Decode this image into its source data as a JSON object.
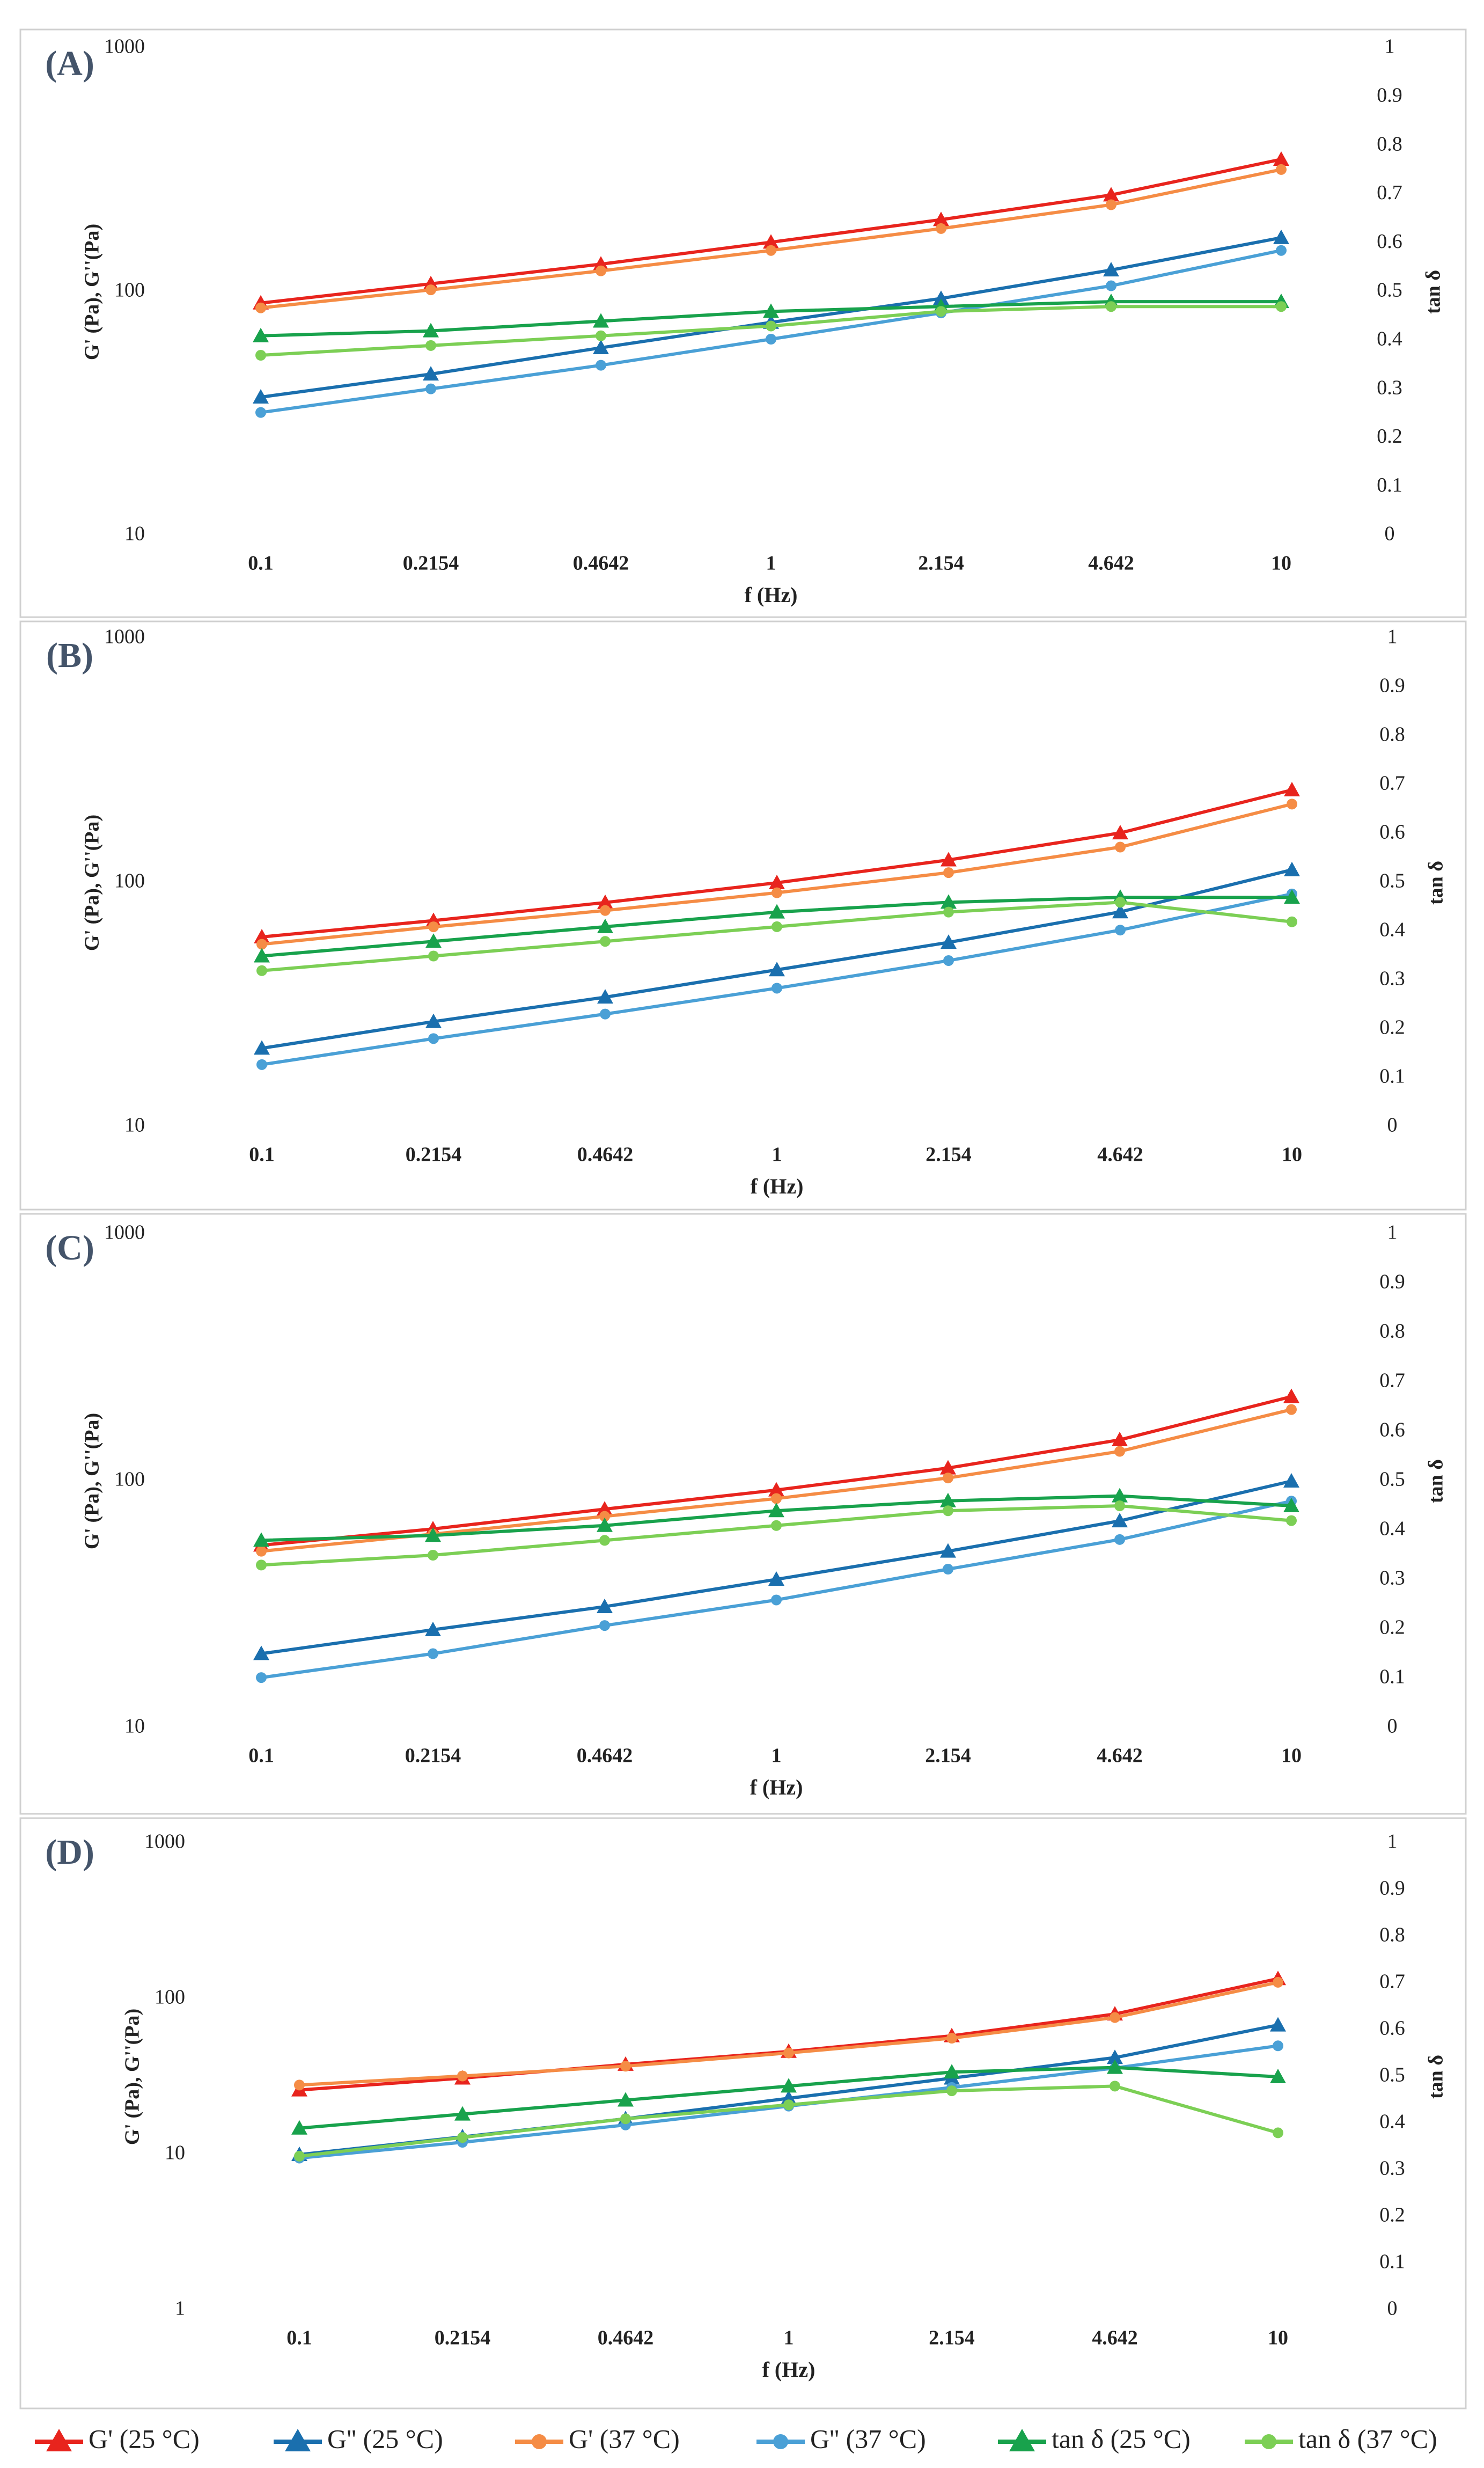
{
  "legend": [
    {
      "label": "G' (25 °C)",
      "color": "#e8241d",
      "marker": "triangle"
    },
    {
      "label": "G'' (25 °C)",
      "color": "#1a6fae",
      "marker": "triangle"
    },
    {
      "label": "G' (37 °C)",
      "color": "#f58c45",
      "marker": "circle"
    },
    {
      "label": "G'' (37 °C)",
      "color": "#4aa0d6",
      "marker": "circle"
    },
    {
      "label": "tan δ (25 °C)",
      "color": "#18a24c",
      "marker": "triangle"
    },
    {
      "label": "tan δ (37 °C)",
      "color": "#7ccf55",
      "marker": "circle"
    }
  ],
  "chart_data": [
    {
      "type": "line",
      "panel_label": "(A)",
      "categories": [
        "0.1",
        "0.2154",
        "0.4642",
        "1",
        "2.154",
        "4.642",
        "10"
      ],
      "xlabel": "f (Hz)",
      "ylabel": "G' (Pa), G''(Pa)",
      "y2label": "tan δ",
      "yscale": "log",
      "ylim": [
        10,
        1000
      ],
      "yticks": [
        "1000",
        "100",
        "10"
      ],
      "y2lim": [
        0,
        1
      ],
      "y2ticks": [
        "1",
        "0.9",
        "0.8",
        "0.7",
        "0.6",
        "0.5",
        "0.4",
        "0.3",
        "0.2",
        "0.1",
        "0"
      ],
      "series": [
        {
          "name": "G' (25 °C)",
          "axis": "left",
          "values": [
            90,
            108,
            130,
            160,
            198,
            250,
            350
          ]
        },
        {
          "name": "G'' (25 °C)",
          "axis": "left",
          "values": [
            37,
            46,
            59,
            75,
            94,
            123,
            167
          ]
        },
        {
          "name": "G' (37 °C)",
          "axis": "left",
          "values": [
            86,
            102,
            122,
            148,
            182,
            228,
            318
          ]
        },
        {
          "name": "G'' (37 °C)",
          "axis": "left",
          "values": [
            32,
            40,
            50,
            64,
            82,
            106,
            148
          ]
        },
        {
          "name": "tan δ (25 °C)",
          "axis": "right",
          "values": [
            0.41,
            0.42,
            0.44,
            0.46,
            0.47,
            0.48,
            0.48
          ]
        },
        {
          "name": "tan δ (37 °C)",
          "axis": "right",
          "values": [
            0.37,
            0.39,
            0.41,
            0.43,
            0.46,
            0.47,
            0.47
          ]
        }
      ]
    },
    {
      "type": "line",
      "panel_label": "(B)",
      "categories": [
        "0.1",
        "0.2154",
        "0.4642",
        "1",
        "2.154",
        "4.642",
        "10"
      ],
      "xlabel": "f (Hz)",
      "ylabel": "G' (Pa), G''(Pa)",
      "y2label": "tan δ",
      "yscale": "log",
      "ylim": [
        10,
        1000
      ],
      "yticks": [
        "1000",
        "100",
        "10"
      ],
      "y2lim": [
        0,
        1
      ],
      "y2ticks": [
        "1",
        "0.9",
        "0.8",
        "0.7",
        "0.6",
        "0.5",
        "0.4",
        "0.3",
        "0.2",
        "0.1",
        "0"
      ],
      "series": [
        {
          "name": "G' (25 °C)",
          "axis": "left",
          "values": [
            60,
            70,
            83,
            100,
            124,
            160,
            240
          ]
        },
        {
          "name": "G'' (25 °C)",
          "axis": "left",
          "values": [
            21,
            27,
            34,
            44,
            57,
            76,
            113
          ]
        },
        {
          "name": "G' (37 °C)",
          "axis": "left",
          "values": [
            56,
            66,
            77,
            91,
            110,
            140,
            210
          ]
        },
        {
          "name": "G'' (37 °C)",
          "axis": "left",
          "values": [
            18,
            23,
            29,
            37,
            48,
            64,
            90
          ]
        },
        {
          "name": "tan δ (25 °C)",
          "axis": "right",
          "values": [
            0.35,
            0.38,
            0.41,
            0.44,
            0.46,
            0.47,
            0.47
          ]
        },
        {
          "name": "tan δ (37 °C)",
          "axis": "right",
          "values": [
            0.32,
            0.35,
            0.38,
            0.41,
            0.44,
            0.46,
            0.42
          ]
        }
      ]
    },
    {
      "type": "line",
      "panel_label": "(C)",
      "categories": [
        "0.1",
        "0.2154",
        "0.4642",
        "1",
        "2.154",
        "4.642",
        "10"
      ],
      "xlabel": "f (Hz)",
      "ylabel": "G' (Pa), G''(Pa)",
      "y2label": "tan δ",
      "yscale": "log",
      "ylim": [
        10,
        1000
      ],
      "yticks": [
        "1000",
        "100",
        "10"
      ],
      "y2lim": [
        0,
        1
      ],
      "y2ticks": [
        "1",
        "0.9",
        "0.8",
        "0.7",
        "0.6",
        "0.5",
        "0.4",
        "0.3",
        "0.2",
        "0.1",
        "0"
      ],
      "series": [
        {
          "name": "G' (25 °C)",
          "axis": "left",
          "values": [
            55,
            64,
            77,
            92,
            113,
            147,
            220
          ]
        },
        {
          "name": "G'' (25 °C)",
          "axis": "left",
          "values": [
            20,
            25,
            31,
            40,
            52,
            69,
            100
          ]
        },
        {
          "name": "G' (37 °C)",
          "axis": "left",
          "values": [
            52,
            61,
            72,
            85,
            103,
            132,
            195
          ]
        },
        {
          "name": "G'' (37 °C)",
          "axis": "left",
          "values": [
            16,
            20,
            26,
            33,
            44,
            58,
            83
          ]
        },
        {
          "name": "tan δ (25 °C)",
          "axis": "right",
          "values": [
            0.38,
            0.39,
            0.41,
            0.44,
            0.46,
            0.47,
            0.45
          ]
        },
        {
          "name": "tan δ (37 °C)",
          "axis": "right",
          "values": [
            0.33,
            0.35,
            0.38,
            0.41,
            0.44,
            0.45,
            0.42
          ]
        }
      ]
    },
    {
      "type": "line",
      "panel_label": "(D)",
      "categories": [
        "0.1",
        "0.2154",
        "0.4642",
        "1",
        "2.154",
        "4.642",
        "10"
      ],
      "xlabel": "f (Hz)",
      "ylabel": "G' (Pa), G''(Pa)",
      "y2label": "tan δ",
      "yscale": "log",
      "ylim": [
        1,
        1000
      ],
      "yticks": [
        "1000",
        "100",
        "10",
        "1"
      ],
      "y2lim": [
        0,
        1
      ],
      "y2ticks": [
        "1",
        "0.9",
        "0.8",
        "0.7",
        "0.6",
        "0.5",
        "0.4",
        "0.3",
        "0.2",
        "0.1",
        "0"
      ],
      "series": [
        {
          "name": "G' (25 °C)",
          "axis": "left",
          "values": [
            26,
            31,
            38,
            46,
            58,
            80,
            135
          ]
        },
        {
          "name": "G'' (25 °C)",
          "axis": "left",
          "values": [
            10,
            13,
            17,
            23,
            31,
            42,
            68
          ]
        },
        {
          "name": "G' (37 °C)",
          "axis": "left",
          "values": [
            28,
            32,
            37,
            45,
            56,
            76,
            128
          ]
        },
        {
          "name": "G'' (37 °C)",
          "axis": "left",
          "values": [
            9.5,
            12,
            15.5,
            20.5,
            27,
            36,
            50
          ]
        },
        {
          "name": "tan δ (25 °C)",
          "axis": "right",
          "values": [
            0.39,
            0.42,
            0.45,
            0.48,
            0.51,
            0.52,
            0.5
          ]
        },
        {
          "name": "tan δ (37 °C)",
          "axis": "right",
          "values": [
            0.33,
            0.37,
            0.41,
            0.44,
            0.47,
            0.48,
            0.38
          ]
        }
      ]
    }
  ]
}
